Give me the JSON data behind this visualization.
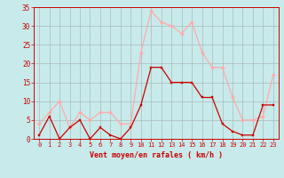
{
  "hours": [
    0,
    1,
    2,
    3,
    4,
    5,
    6,
    7,
    8,
    9,
    10,
    11,
    12,
    13,
    14,
    15,
    16,
    17,
    18,
    19,
    20,
    21,
    22,
    23
  ],
  "vent_moyen": [
    1,
    6,
    0,
    3,
    5,
    0,
    3,
    1,
    0,
    3,
    9,
    19,
    19,
    15,
    15,
    15,
    11,
    11,
    4,
    2,
    1,
    1,
    9,
    9
  ],
  "vent_rafales": [
    4,
    7,
    10,
    3,
    7,
    5,
    7,
    7,
    4,
    4,
    23,
    34,
    31,
    30,
    28,
    31,
    23,
    19,
    19,
    11,
    5,
    5,
    6,
    17
  ],
  "color_moyen": "#cc0000",
  "color_rafales": "#ffaaaa",
  "bg_color": "#c8eaea",
  "grid_color": "#aabbbb",
  "xlabel": "Vent moyen/en rafales ( km/h )",
  "xlabel_color": "#cc0000",
  "tick_color": "#cc0000",
  "ylim": [
    0,
    35
  ],
  "yticks": [
    0,
    5,
    10,
    15,
    20,
    25,
    30,
    35
  ],
  "xlim": [
    -0.5,
    23.5
  ]
}
